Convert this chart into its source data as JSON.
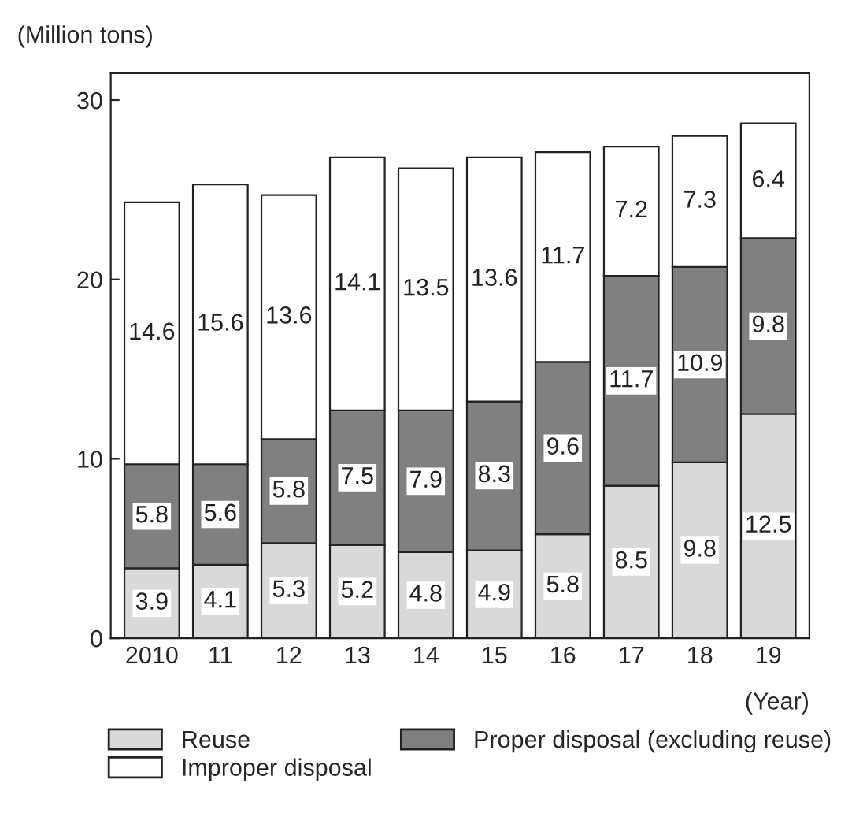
{
  "chart_data": {
    "type": "bar",
    "stacked": true,
    "ylabel": "(Million tons)",
    "xlabel": "(Year)",
    "categories": [
      "2010",
      "11",
      "12",
      "13",
      "14",
      "15",
      "16",
      "17",
      "18",
      "19"
    ],
    "series": [
      {
        "name": "Reuse",
        "color": "#d9d9d9",
        "values": [
          3.9,
          4.1,
          5.3,
          5.2,
          4.8,
          4.9,
          5.8,
          8.5,
          9.8,
          12.5
        ]
      },
      {
        "name": "Proper disposal (excluding reuse)",
        "color": "#808080",
        "values": [
          5.8,
          5.6,
          5.8,
          7.5,
          7.9,
          8.3,
          9.6,
          11.7,
          10.9,
          9.8
        ]
      },
      {
        "name": "Improper disposal",
        "color": "#ffffff",
        "values": [
          14.6,
          15.6,
          13.6,
          14.1,
          13.5,
          13.6,
          11.7,
          7.2,
          7.3,
          6.4
        ]
      }
    ],
    "ylim": [
      0,
      31.5
    ],
    "yticks": [
      0,
      10,
      20,
      30
    ],
    "data_labels": true,
    "grid": false,
    "legend": "bottom"
  }
}
